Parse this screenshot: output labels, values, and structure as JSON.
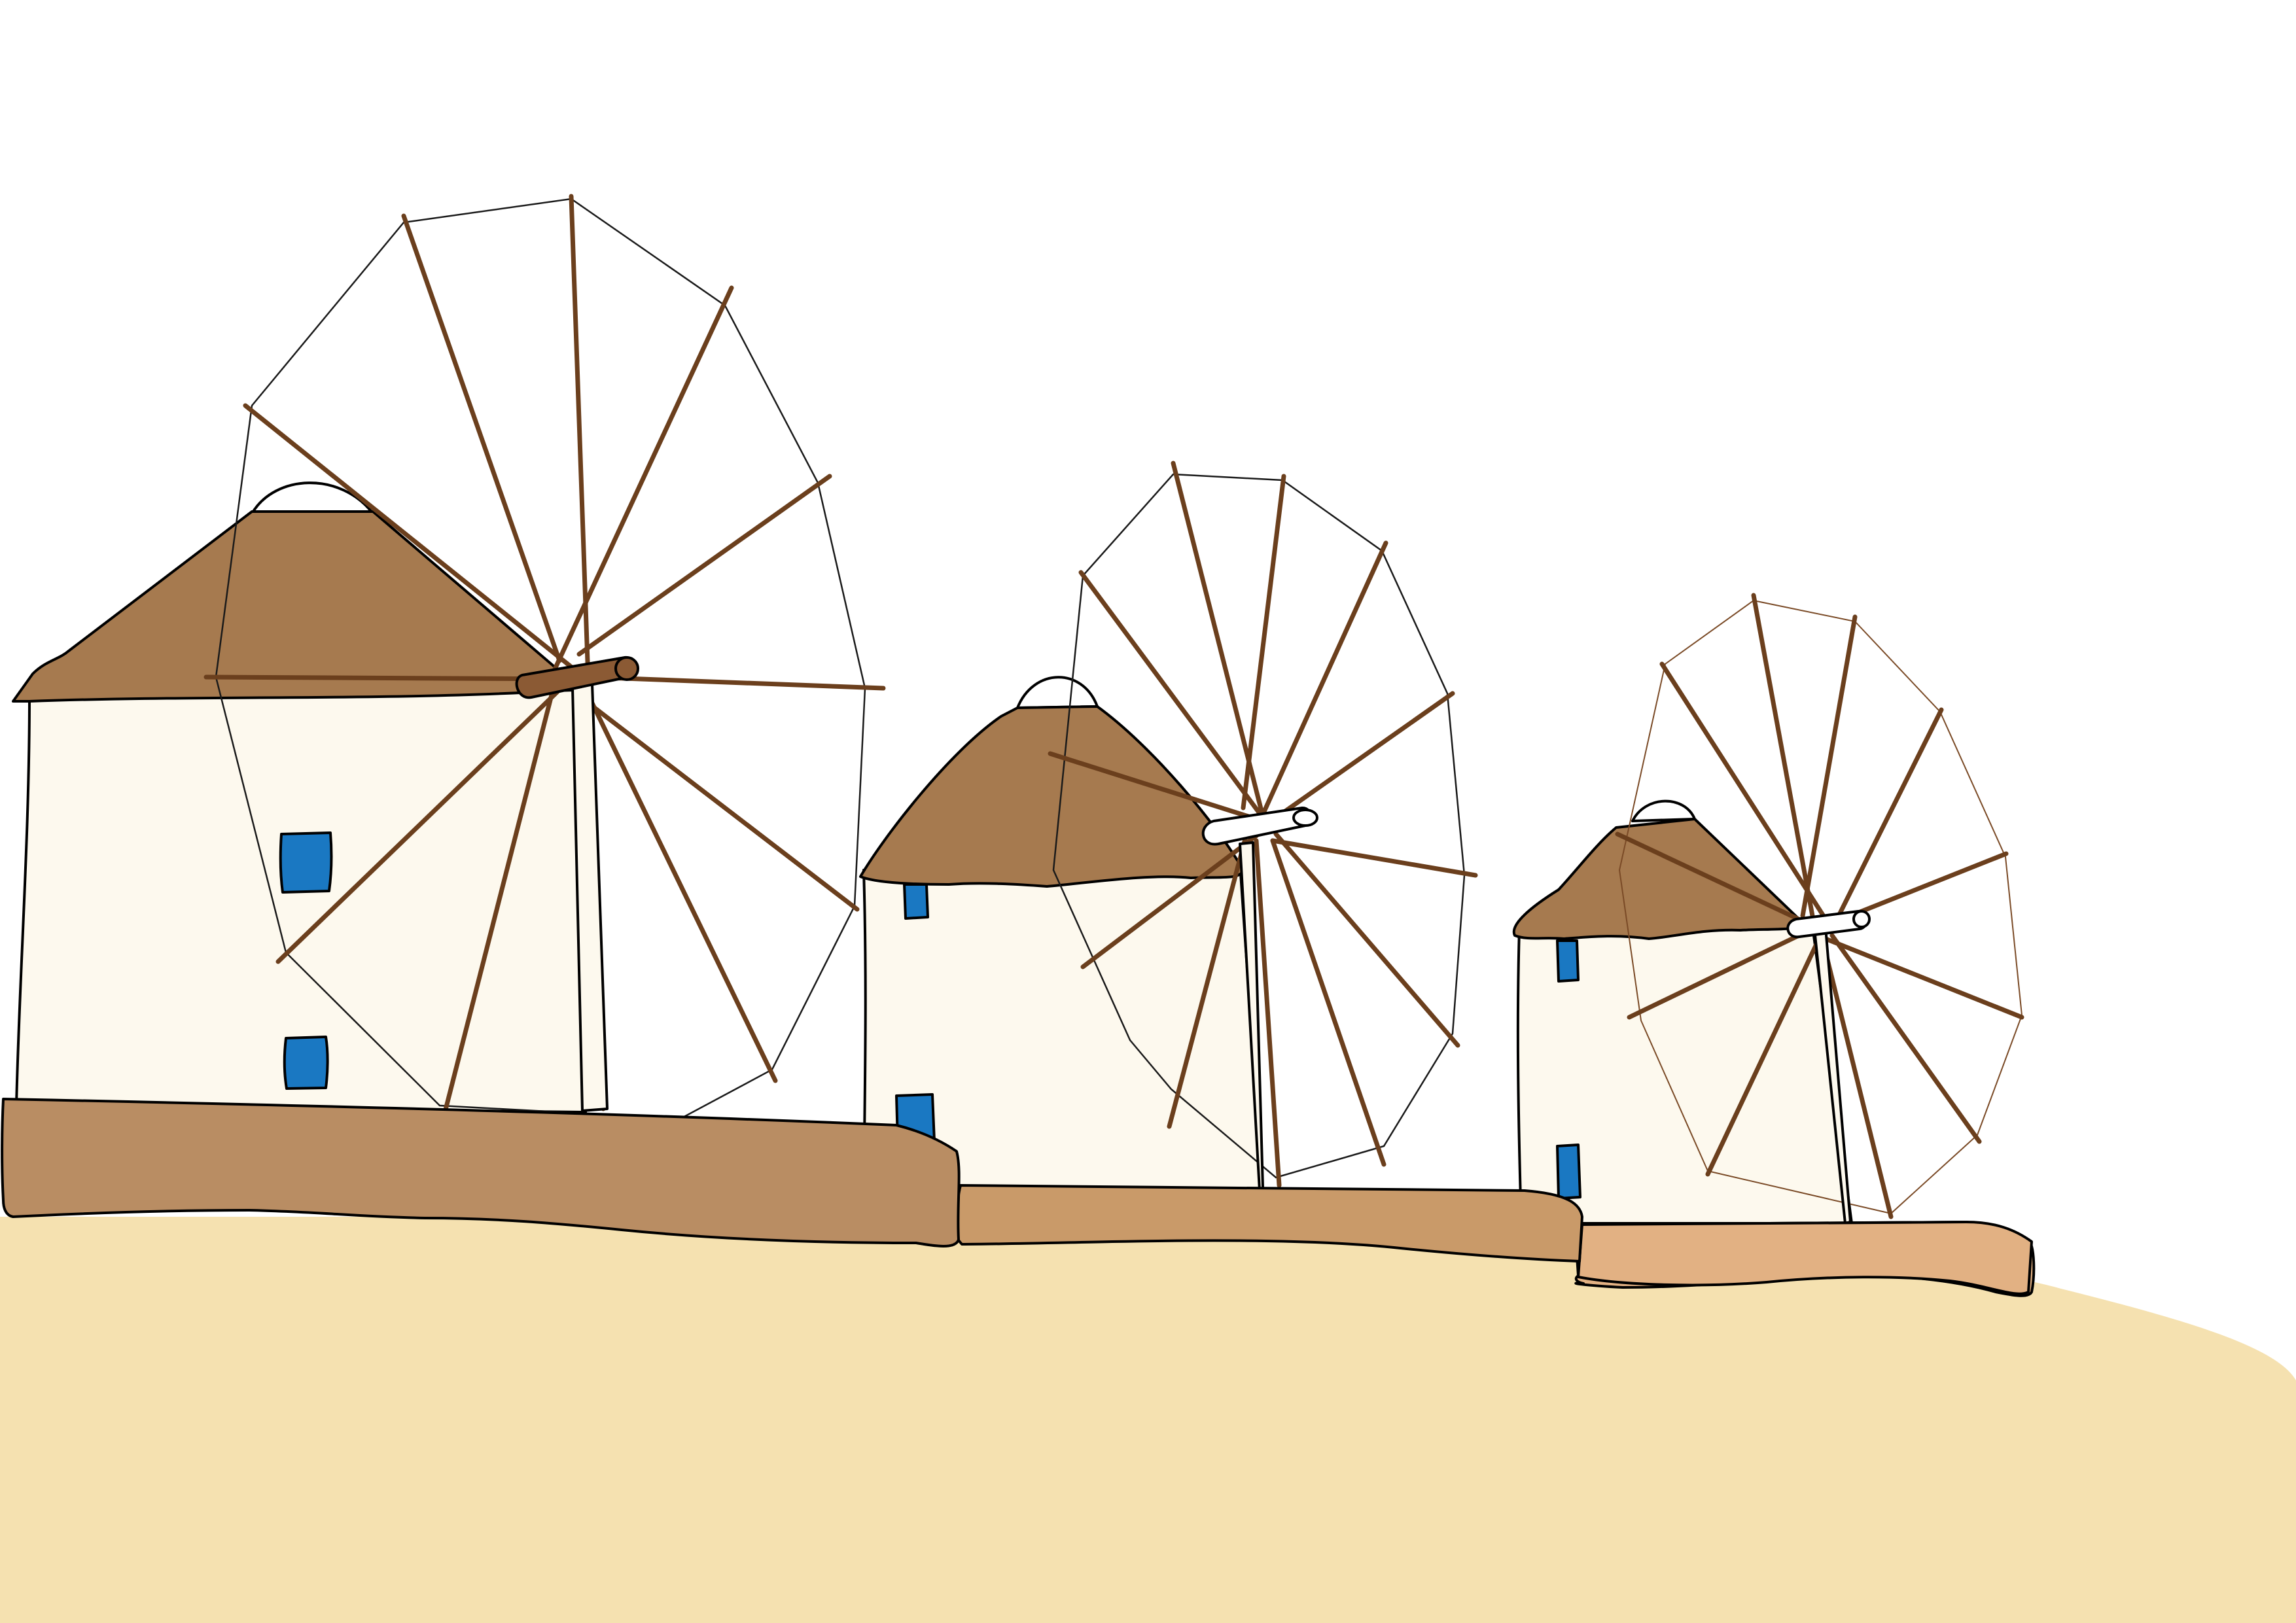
{
  "colors": {
    "sky": "#ffffff",
    "ground": "#f5e1b0",
    "wall_light": "#fdf9ee",
    "roof": "#a67a4f",
    "platform_left": "#b98d63",
    "platform_middle": "#c99a69",
    "platform_right": "#e2b183",
    "window": "#1a78c2",
    "spar": "#6b3f1d",
    "rim_right": "#7a4a26",
    "hub_left": "#8b5a34",
    "hub_light": "#ffffff",
    "outline": "#000000"
  },
  "scene": {
    "windmills": [
      {
        "name": "left-windmill",
        "spar_count": 12,
        "windows": 2,
        "hub": "brown"
      },
      {
        "name": "middle-windmill",
        "spar_count": 12,
        "windows": 2,
        "hub": "white"
      },
      {
        "name": "right-windmill",
        "spar_count": 12,
        "windows": 2,
        "hub": "white"
      }
    ]
  }
}
